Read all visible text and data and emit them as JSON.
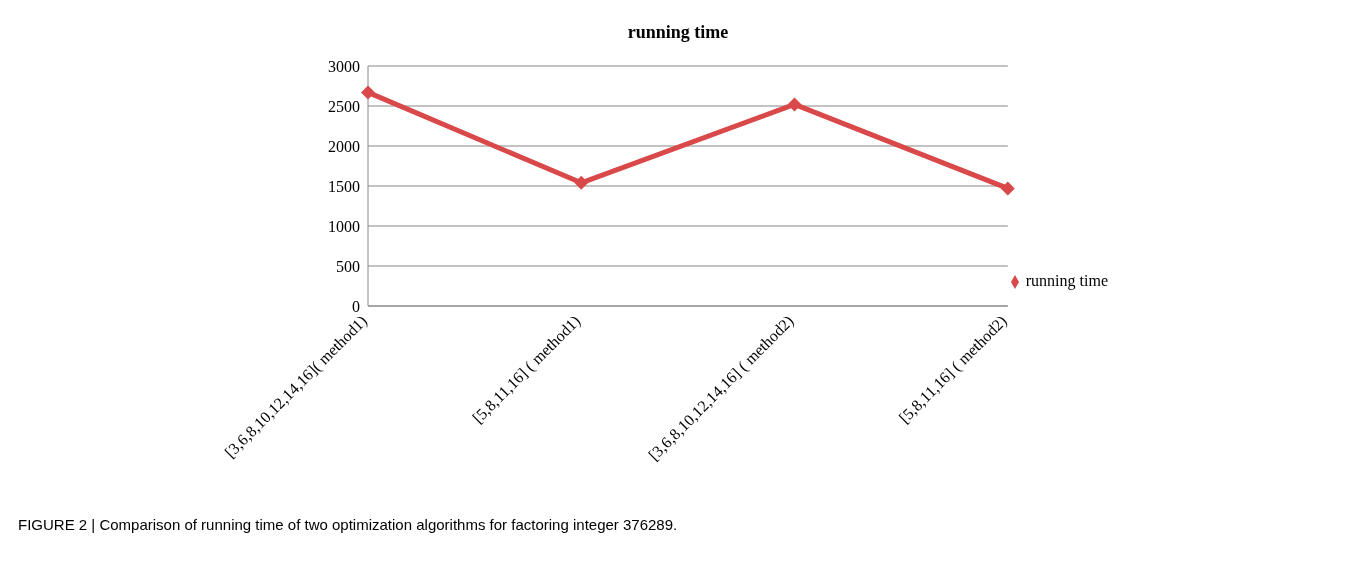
{
  "chart_data": {
    "type": "line",
    "title": "running time",
    "categories": [
      "[3,6,8,10,12,14,16]( method1)",
      "[5,8,11,16] ( method1)",
      "[3,6,8,10,12,14,16] ( method2)",
      "[5,8,11,16] ( method2)"
    ],
    "series": [
      {
        "name": "running time",
        "color": "#d9494a",
        "values": [
          2670,
          1540,
          2520,
          1470
        ]
      }
    ],
    "ylim": [
      0,
      3000
    ],
    "yticks": [
      0,
      500,
      1000,
      1500,
      2000,
      2500,
      3000
    ],
    "grid": "y",
    "legend": "right",
    "marker": "diamond",
    "line_style": "solid",
    "annotations": [
      "FIGURE 2 | Comparison of running time of two optimization algorithms for factoring integer 376289."
    ]
  }
}
